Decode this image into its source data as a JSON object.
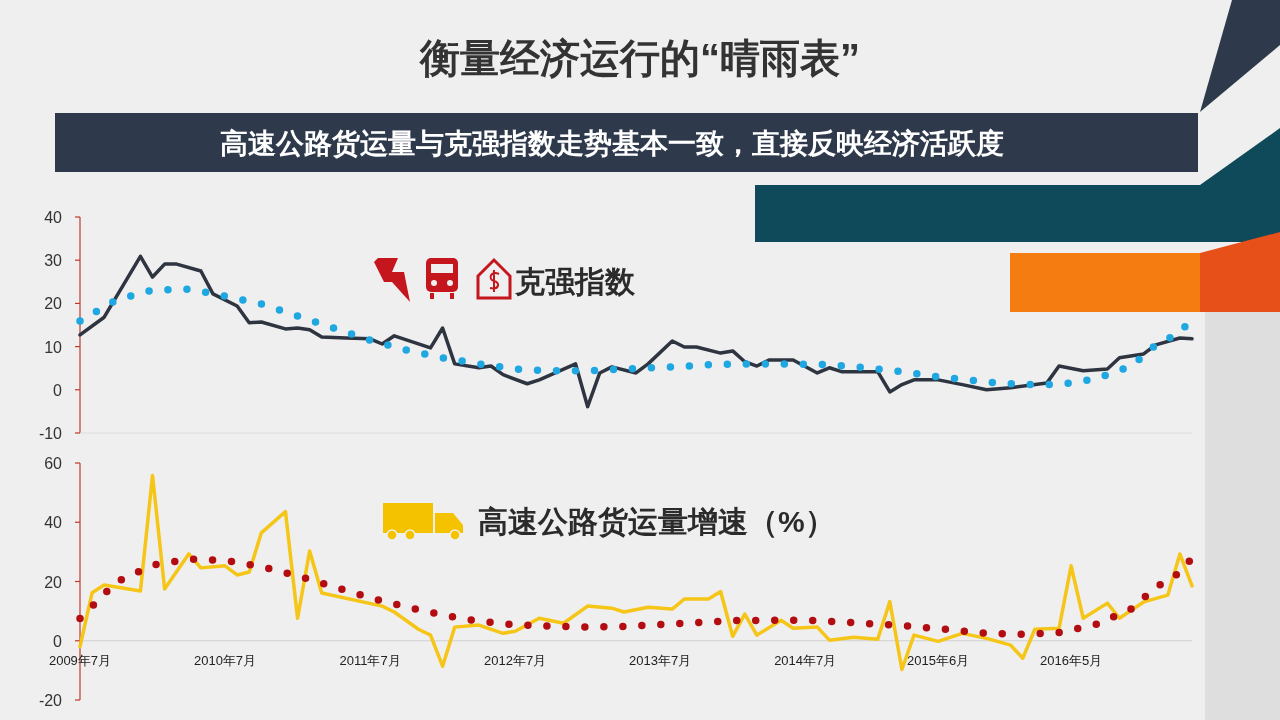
{
  "chart_data": [
    {
      "type": "line",
      "title": "衡量经济运行的“晴雨表”",
      "subtitle": "高速公路货运量与克强指数走势基本一致，直接反映经济活跃度",
      "xlim": [
        "2009-07",
        "2017-03"
      ],
      "ylim": [
        -10,
        40
      ],
      "yticks": [
        -10,
        0,
        10,
        20,
        30,
        40
      ],
      "tick_labels": "y",
      "series": [
        {
          "name": "克强指数",
          "color": "#2e3440",
          "line_style": "solid",
          "x": [
            "2009-07",
            "2009-09",
            "2009-12",
            "2010-01",
            "2010-02",
            "2010-03",
            "2010-05",
            "2010-06",
            "2010-08",
            "2010-09",
            "2010-10",
            "2010-12",
            "2011-01",
            "2011-02",
            "2011-03",
            "2011-05",
            "2011-07",
            "2011-08",
            "2011-09",
            "2011-12",
            "2012-01",
            "2012-02",
            "2012-04",
            "2012-05",
            "2012-06",
            "2012-08",
            "2012-09",
            "2012-12",
            "2013-01",
            "2013-02",
            "2013-03",
            "2013-05",
            "2013-06",
            "2013-08",
            "2013-09",
            "2013-10",
            "2013-12",
            "2014-01",
            "2014-02",
            "2014-03",
            "2014-04",
            "2014-06",
            "2014-08",
            "2014-09",
            "2014-10",
            "2015-01",
            "2015-02",
            "2015-03",
            "2015-04",
            "2015-06",
            "2015-08",
            "2015-10",
            "2015-12",
            "2016-03",
            "2016-04",
            "2016-06",
            "2016-08",
            "2016-09",
            "2016-11",
            "2016-12",
            "2017-02",
            "2017-03"
          ],
          "values": [
            12.7,
            16.8,
            30.9,
            26.1,
            29.1,
            29.1,
            27.5,
            22.2,
            19.4,
            15.5,
            15.7,
            14.1,
            14.3,
            13.9,
            12.2,
            12.0,
            11.8,
            10.6,
            12.5,
            9.7,
            14.3,
            6.0,
            5.1,
            5.5,
            3.5,
            1.4,
            2.3,
            6.0,
            -3.9,
            3.9,
            5.3,
            3.9,
            6.0,
            11.3,
            9.9,
            9.9,
            8.5,
            9.0,
            6.5,
            5.5,
            6.9,
            6.9,
            3.9,
            5.1,
            4.2,
            4.2,
            -0.5,
            1.2,
            2.3,
            2.3,
            1.2,
            0,
            0.5,
            1.6,
            5.5,
            4.4,
            4.8,
            7.4,
            8.3,
            10.4,
            12.0,
            11.8
          ]
        },
        {
          "color": "#1ea7e1",
          "line_style": "dotted",
          "x": [
            "2009-07",
            "2009-10",
            "2010-01",
            "2010-04",
            "2010-07",
            "2010-10",
            "2011-01",
            "2011-04",
            "2011-07",
            "2011-10",
            "2012-01",
            "2012-04",
            "2012-07",
            "2012-10",
            "2013-01",
            "2013-04",
            "2013-08",
            "2013-11",
            "2014-02",
            "2014-05",
            "2014-09",
            "2014-12",
            "2015-03",
            "2015-06",
            "2015-10",
            "2016-01",
            "2016-04",
            "2016-07",
            "2016-10",
            "2016-12",
            "2017-02",
            "2017-03"
          ],
          "values": [
            15.9,
            20.8,
            23.1,
            23.3,
            21.7,
            19.9,
            17.1,
            14.3,
            11.5,
            9.2,
            7.4,
            6.0,
            4.8,
            4.4,
            4.4,
            4.8,
            5.3,
            5.8,
            6.0,
            6.0,
            5.8,
            5.1,
            4.2,
            3.0,
            1.8,
            1.2,
            1.2,
            2.5,
            5.5,
            10.4,
            13.2,
            16.6
          ]
        }
      ]
    },
    {
      "type": "line",
      "xlim": [
        "2009-07",
        "2017-03"
      ],
      "ylim": [
        -20,
        60
      ],
      "yticks": [
        -20,
        0,
        20,
        40,
        60
      ],
      "xticks": [
        {
          "value": "2009-07",
          "label": "2009年7月"
        },
        {
          "value": "2010-07",
          "label": "2010年7月"
        },
        {
          "value": "2011-07",
          "label": "2011年7月"
        },
        {
          "value": "2012-07",
          "label": "2012年7月"
        },
        {
          "value": "2013-07",
          "label": "2013年7月"
        },
        {
          "value": "2014-07",
          "label": "2014年7月"
        },
        {
          "value": "2015-06",
          "label": "2015年6月"
        },
        {
          "value": "2016-05",
          "label": "2016年5月"
        }
      ],
      "series": [
        {
          "name": "高速公路货运量增速（%）",
          "color": "#f5c518",
          "line_style": "solid",
          "x": [
            "2009-07",
            "2009-08",
            "2009-09",
            "2009-12",
            "2010-01",
            "2010-02",
            "2010-04",
            "2010-05",
            "2010-07",
            "2010-08",
            "2010-09",
            "2010-10",
            "2010-12",
            "2011-01",
            "2011-02",
            "2011-03",
            "2011-08",
            "2011-09",
            "2011-11",
            "2011-12",
            "2012-01",
            "2012-02",
            "2012-04",
            "2012-06",
            "2012-07",
            "2012-09",
            "2012-11",
            "2013-01",
            "2013-03",
            "2013-04",
            "2013-06",
            "2013-08",
            "2013-09",
            "2013-11",
            "2013-12",
            "2014-01",
            "2014-02",
            "2014-03",
            "2014-05",
            "2014-06",
            "2014-08",
            "2014-09",
            "2014-11",
            "2015-01",
            "2015-02",
            "2015-03",
            "2015-04",
            "2015-06",
            "2015-08",
            "2015-10",
            "2015-12",
            "2016-01",
            "2016-02",
            "2016-04",
            "2016-05",
            "2016-06",
            "2016-08",
            "2016-09",
            "2016-11",
            "2017-01",
            "2017-02",
            "2017-03"
          ],
          "values": [
            -2.0,
            16.2,
            18.8,
            16.8,
            55.8,
            17.5,
            29.3,
            24.6,
            25.3,
            22.2,
            23.2,
            36.4,
            43.6,
            7.6,
            30.3,
            16.1,
            11.7,
            9.7,
            3.9,
            1.9,
            -8.6,
            4.6,
            5.3,
            2.5,
            3.2,
            7.6,
            5.9,
            11.7,
            11.0,
            9.7,
            11.3,
            10.7,
            14.1,
            14.1,
            16.6,
            1.5,
            9.0,
            1.9,
            6.9,
            4.2,
            4.6,
            0.2,
            1.2,
            0.5,
            13.2,
            -9.7,
            1.9,
            -0.2,
            2.5,
            0.8,
            -1.5,
            -5.9,
            3.9,
            4.2,
            25.3,
            7.6,
            12.7,
            7.6,
            13.1,
            15.4,
            29.3,
            18.5
          ]
        },
        {
          "color": "#b30d12",
          "line_style": "dotted",
          "x": [
            "2009-07",
            "2009-10",
            "2010-01",
            "2010-04",
            "2010-07",
            "2010-10",
            "2011-01",
            "2011-04",
            "2011-07",
            "2011-10",
            "2012-01",
            "2012-04",
            "2012-07",
            "2012-10",
            "2013-01",
            "2013-04",
            "2013-07",
            "2013-10",
            "2014-01",
            "2014-04",
            "2014-07",
            "2014-10",
            "2015-01",
            "2015-04",
            "2015-07",
            "2015-10",
            "2016-01",
            "2016-04",
            "2016-07",
            "2016-10",
            "2016-12",
            "2017-02",
            "2017-03"
          ],
          "values": [
            7.5,
            19.8,
            25.5,
            27.6,
            27.1,
            25.0,
            21.9,
            18.2,
            14.5,
            11.4,
            8.7,
            6.6,
            5.4,
            4.9,
            4.6,
            4.8,
            5.5,
            6.1,
            6.8,
            6.9,
            6.9,
            6.4,
            5.6,
            4.8,
            3.7,
            2.5,
            2.2,
            2.8,
            5.4,
            10.8,
            18.0,
            23.0,
            28.0
          ]
        }
      ]
    }
  ]
}
